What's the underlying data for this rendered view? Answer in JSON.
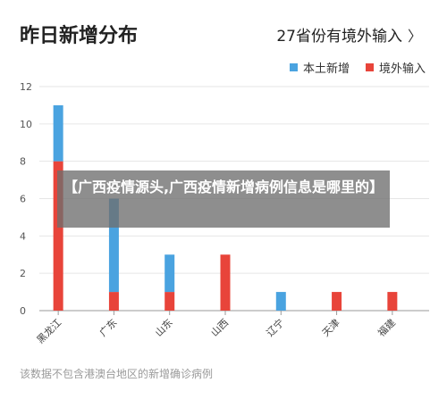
{
  "header": {
    "title": "昨日新增分布",
    "link_label": "27省份有境外输入",
    "link_icon": "chevron-right-icon"
  },
  "overlay_caption": "【广西疫情源头,广西疫情新增病例信息是哪里的】",
  "footnote": "该数据不包含港澳台地区的新增确诊病例",
  "chart_data": {
    "type": "bar",
    "stacked": true,
    "categories": [
      "黑龙江",
      "广东",
      "山东",
      "山西",
      "辽宁",
      "天津",
      "福建"
    ],
    "series": [
      {
        "name": "境外输入",
        "color": "#e8443a",
        "values": [
          8,
          1,
          1,
          3,
          0,
          1,
          1
        ]
      },
      {
        "name": "本土新增",
        "color": "#4aa3e0",
        "values": [
          3,
          5,
          2,
          0,
          1,
          0,
          0
        ]
      }
    ],
    "legend_order": [
      "本土新增",
      "境外输入"
    ],
    "yticks": [
      0,
      2,
      4,
      6,
      8,
      10,
      12
    ],
    "ylim": [
      0,
      12
    ],
    "grid": true,
    "legend_position": "top-right"
  }
}
